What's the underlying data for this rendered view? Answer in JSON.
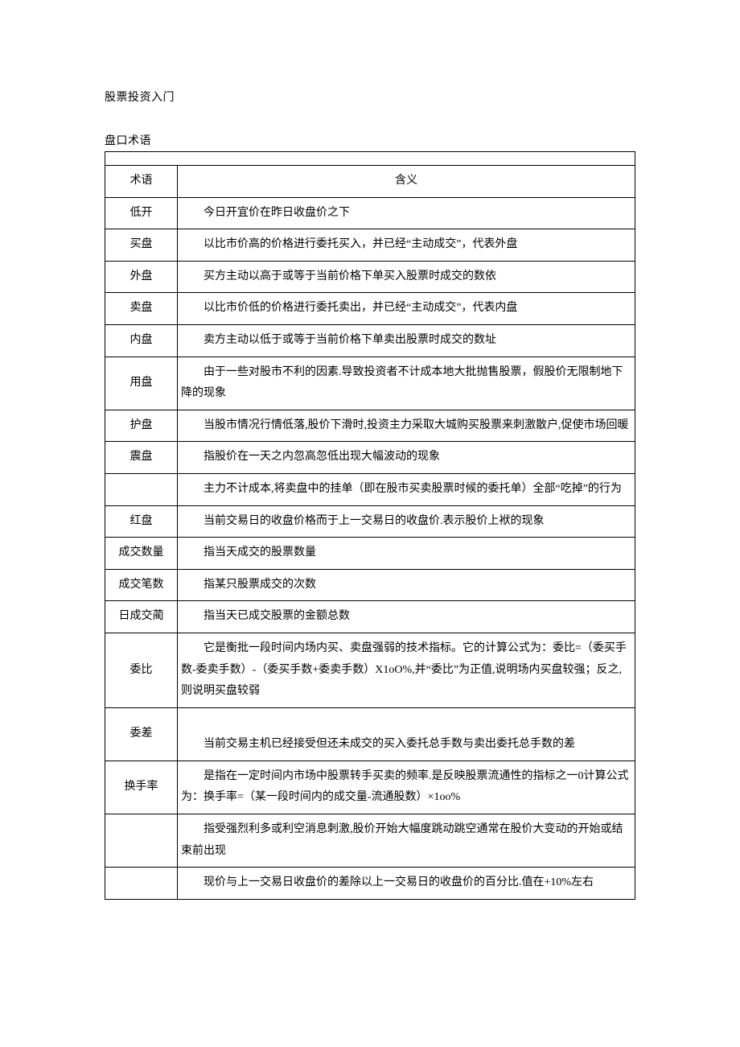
{
  "doc": {
    "title": "股票投资入门",
    "section": "盘口术语"
  },
  "table": {
    "header": {
      "term": "术语",
      "def": "含义"
    },
    "rows": [
      {
        "term": "低开",
        "def": "今日开宜价在昨日收盘价之下",
        "indent": true
      },
      {
        "term": "买盘",
        "def": "以比市价高的价格进行委托买入，并已经“主动成交”，代表外盘",
        "indent": true
      },
      {
        "term": "外盘",
        "def": "买方主动以高于或等于当前价格下单买入股票时成交的数依",
        "indent": true
      },
      {
        "term": "卖盘",
        "def": "以比市价低的价格进行委托卖出，并已经“主动成交”，代表内盘",
        "indent": true
      },
      {
        "term": "内盘",
        "def": "卖方主动以低于或等于当前价格下单卖出股票时成交的数址",
        "indent": true
      },
      {
        "term": "用盘",
        "def": "由于一些对股市不利的因素.导致投资者不计成本地大批抛售股票，假股价无限制地下降的现象",
        "indent": true,
        "hang": true
      },
      {
        "term": "护盘",
        "def": "当股市情况行情低落,股价下滑时,投资主力采取大城购买股票来刺激散户,促使市场回暖",
        "indent": true,
        "hang": true
      },
      {
        "term": "震盘",
        "def": "指股价在一天之内忽高忽低出现大幅波动的现象",
        "indent": true
      },
      {
        "term": "",
        "def": "主力不计成本,将卖盘中的挂单（即在股市买卖股票时候的委托单）全部“吃掉”的行为",
        "indent": true,
        "hang": true
      },
      {
        "term": "红盘",
        "def": "当前交易日的收盘价格而于上一交易日的收盘价.表示股价上袱的现象",
        "indent": true
      },
      {
        "term": "成交数量",
        "def": "指当天成交的股票数量",
        "indent": true
      },
      {
        "term": "成交笔数",
        "def": "指某只股票成交的次数",
        "indent": true
      },
      {
        "term": "日成交蔺",
        "def": "指当天已成交股票的金额总数",
        "indent": true
      },
      {
        "term": "委比",
        "def": "它是衡批一段时间内场内买、卖盘强弱的技术指标。它的计算公式为：委比=（委买手数-委卖手数）-（委买手数+委卖手数）X1oO%,并“委比”为正值,说明场内买盘较强；反之,则说明买盘较弱",
        "indent": true,
        "hang": true
      },
      {
        "term": "委差",
        "def_lines": [
          "",
          "当前交易主机已经接受但还未成交的买入委托总手数与卖出委托总手数的差"
        ]
      },
      {
        "term": "换手率",
        "def": "是指在一定时间内市场中股票转手买卖的频率.是反映股票流通性的指标之一0计算公式为：换手率=（某一段时间内的成交量-流通股数）×1oo%",
        "indent": true,
        "hang": true
      },
      {
        "term": "",
        "def": "指受强烈利多或利空消息刺激,股价开始大幅度跳动跳空通常在股价大变动的开始或结束前出现",
        "indent": true,
        "hang": true
      },
      {
        "term": "",
        "def": "现价与上一交易日收盘价的差除以上一交易日的收盘价的百分比.值在+10%左右",
        "indent": true,
        "hang": true
      }
    ]
  }
}
